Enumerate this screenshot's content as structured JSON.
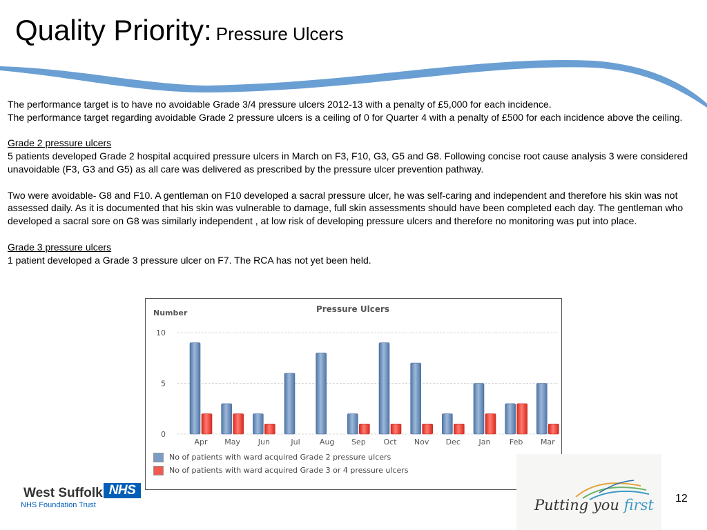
{
  "title": {
    "main": "Quality Priority:",
    "sub": "Pressure Ulcers"
  },
  "body": {
    "p1": "The performance target is to have no avoidable Grade 3/4 pressure ulcers 2012-13 with a penalty of £5,000 for each incidence.",
    "p2": "The performance target regarding avoidable Grade 2 pressure ulcers is a ceiling of 0 for Quarter 4 with a penalty of £500 for each incidence above the ceiling.",
    "grade2_heading": "Grade 2 pressure ulcers",
    "grade2_text": "5 patients developed Grade 2 hospital acquired pressure ulcers in  March on  F3, F10, G3, G5 and G8. Following concise root cause analysis 3  were considered unavoidable (F3, G3 and G5) as all care was delivered as prescribed by the pressure ulcer prevention pathway.",
    "avoidable_text": "Two were avoidable- G8 and F10. A gentleman on F10 developed a sacral pressure ulcer, he was self-caring and independent and therefore his skin was not assessed daily. As it is documented that his skin was vulnerable to damage, full skin assessments should have been completed each day. The gentleman who developed a sacral sore on G8 was similarly independent , at low risk of developing pressure ulcers and therefore no monitoring was put into place.",
    "grade3_heading": "Grade 3 pressure ulcers",
    "grade3_text": " 1 patient developed a Grade 3 pressure ulcer on  F7.  The RCA has not yet been held."
  },
  "chart_data": {
    "type": "bar",
    "title": "Pressure Ulcers",
    "ylabel": "Number",
    "xlabel": "",
    "ylim": [
      0,
      10
    ],
    "yticks": [
      0,
      5,
      10
    ],
    "grid": true,
    "legend_position": "bottom-left",
    "categories": [
      "Apr",
      "May",
      "Jun",
      "Jul",
      "Aug",
      "Sep",
      "Oct",
      "Nov",
      "Dec",
      "Jan",
      "Feb",
      "Mar"
    ],
    "series": [
      {
        "name": "No of patients with ward acquired Grade 2 pressure ulcers",
        "color": "#6f91bc",
        "values": [
          9,
          3,
          2,
          6,
          8,
          2,
          9,
          7,
          2,
          5,
          3,
          5
        ]
      },
      {
        "name": "No of patients with ward acquired Grade 3 or 4 pressure ulcers",
        "color": "#e8453c",
        "values": [
          2,
          2,
          1,
          0,
          0,
          1,
          1,
          1,
          1,
          2,
          3,
          1
        ]
      }
    ]
  },
  "footer": {
    "org_name": "West Suffolk",
    "nhs_badge": "NHS",
    "trust_name": "NHS Foundation Trust",
    "tagline_start": "Putting you ",
    "tagline_end": "first",
    "page_number": "12"
  },
  "colors": {
    "swoosh": "#6a9fd3",
    "nhs_blue": "#005eb8",
    "tagline_accent": "#3a9ac4"
  }
}
